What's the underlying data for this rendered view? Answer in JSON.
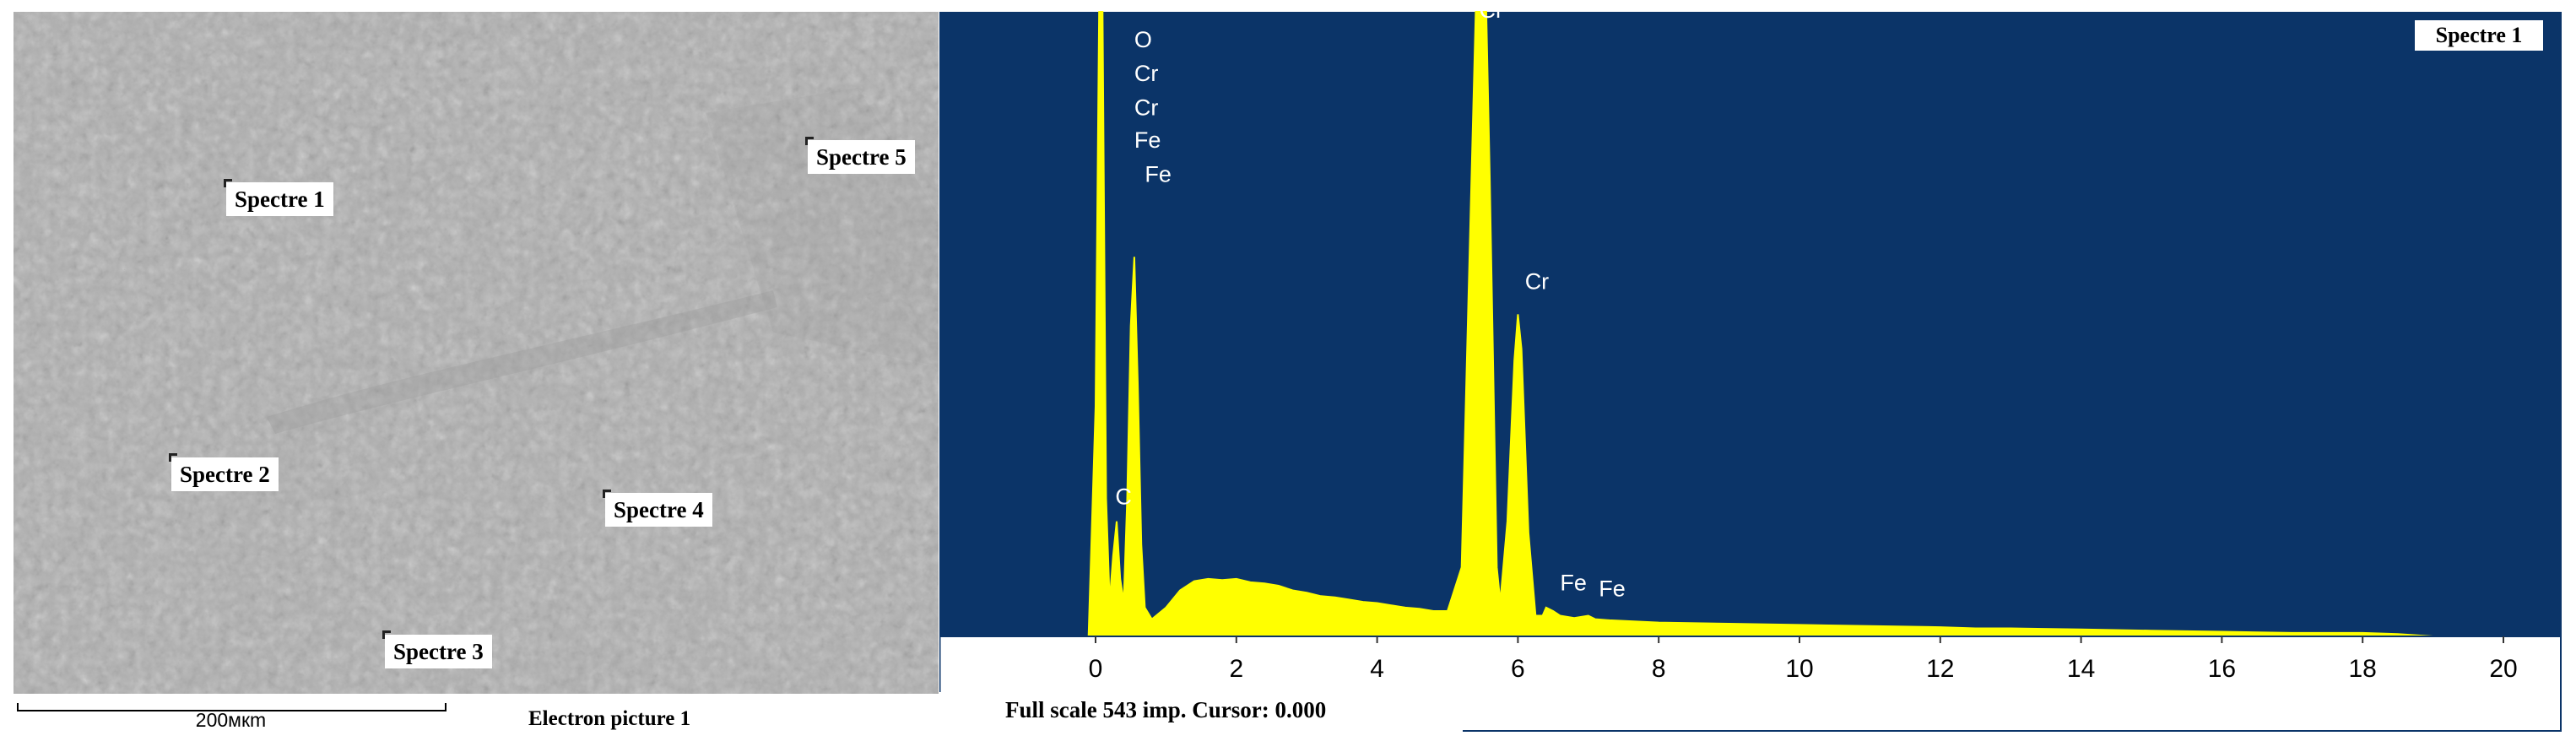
{
  "sem": {
    "spectra": [
      {
        "label": "Spectre 1"
      },
      {
        "label": "Spectre 2"
      },
      {
        "label": "Spectre 3"
      },
      {
        "label": "Spectre 4"
      },
      {
        "label": "Spectre 5"
      }
    ],
    "scalebar_label": "200мкm",
    "caption": "Electron picture 1"
  },
  "colors": {
    "plot_background": "#0b3468",
    "spectrum_fill": "#ffff00",
    "axis_text": "#000000",
    "peak_label_text": "#ffffff"
  },
  "status": {
    "text": "Full scale 543 imp. Cursor: 0.000"
  },
  "chart_data": {
    "type": "area",
    "legend": "Spectre 1",
    "xlim": [
      -2.2,
      20.6
    ],
    "ylim": [
      0,
      543
    ],
    "xticks": [
      0,
      2,
      4,
      6,
      8,
      10,
      12,
      14,
      16,
      18,
      20
    ],
    "x": [
      -0.1,
      0.0,
      0.05,
      0.1,
      0.15,
      0.2,
      0.25,
      0.3,
      0.35,
      0.4,
      0.45,
      0.5,
      0.55,
      0.6,
      0.65,
      0.7,
      0.8,
      1.0,
      1.2,
      1.4,
      1.6,
      1.8,
      2.0,
      2.2,
      2.4,
      2.6,
      2.8,
      3.0,
      3.2,
      3.4,
      3.6,
      3.8,
      4.0,
      4.2,
      4.4,
      4.6,
      4.8,
      5.0,
      5.2,
      5.3,
      5.4,
      5.45,
      5.5,
      5.55,
      5.6,
      5.7,
      5.75,
      5.85,
      5.95,
      6.0,
      6.05,
      6.15,
      6.25,
      6.35,
      6.4,
      6.5,
      6.6,
      6.8,
      7.0,
      7.1,
      7.3,
      8.0,
      9.0,
      10.0,
      11.0,
      12.0,
      12.5,
      13.0,
      14.0,
      15.0,
      16.0,
      17.0,
      18.0,
      18.5,
      19.0,
      20.0,
      20.6
    ],
    "y": [
      0,
      200,
      543,
      543,
      120,
      30,
      70,
      100,
      50,
      30,
      120,
      270,
      330,
      220,
      80,
      25,
      15,
      25,
      40,
      48,
      50,
      49,
      50,
      47,
      46,
      44,
      40,
      38,
      35,
      34,
      32,
      30,
      29,
      27,
      25,
      24,
      22,
      22,
      60,
      300,
      543,
      543,
      543,
      543,
      400,
      60,
      30,
      100,
      240,
      280,
      250,
      90,
      18,
      18,
      25,
      22,
      18,
      16,
      18,
      15,
      14,
      12,
      11,
      10,
      9,
      8,
      7,
      7,
      6,
      5,
      4,
      3,
      3,
      2,
      0,
      0,
      0
    ],
    "peak_labels": [
      {
        "label": "O",
        "x": 0.55,
        "y": 512
      },
      {
        "label": "Cr",
        "x": 0.55,
        "y": 483
      },
      {
        "label": "Cr",
        "x": 0.55,
        "y": 453
      },
      {
        "label": "Fe",
        "x": 0.55,
        "y": 425
      },
      {
        "label": "Fe",
        "x": 0.7,
        "y": 395
      },
      {
        "label": "C",
        "x": 0.28,
        "y": 115
      },
      {
        "label": "Cr",
        "x": 5.45,
        "y": 538
      },
      {
        "label": "Cr",
        "x": 6.1,
        "y": 302
      },
      {
        "label": "Fe",
        "x": 6.6,
        "y": 40
      },
      {
        "label": "Fe",
        "x": 7.15,
        "y": 35
      }
    ]
  }
}
